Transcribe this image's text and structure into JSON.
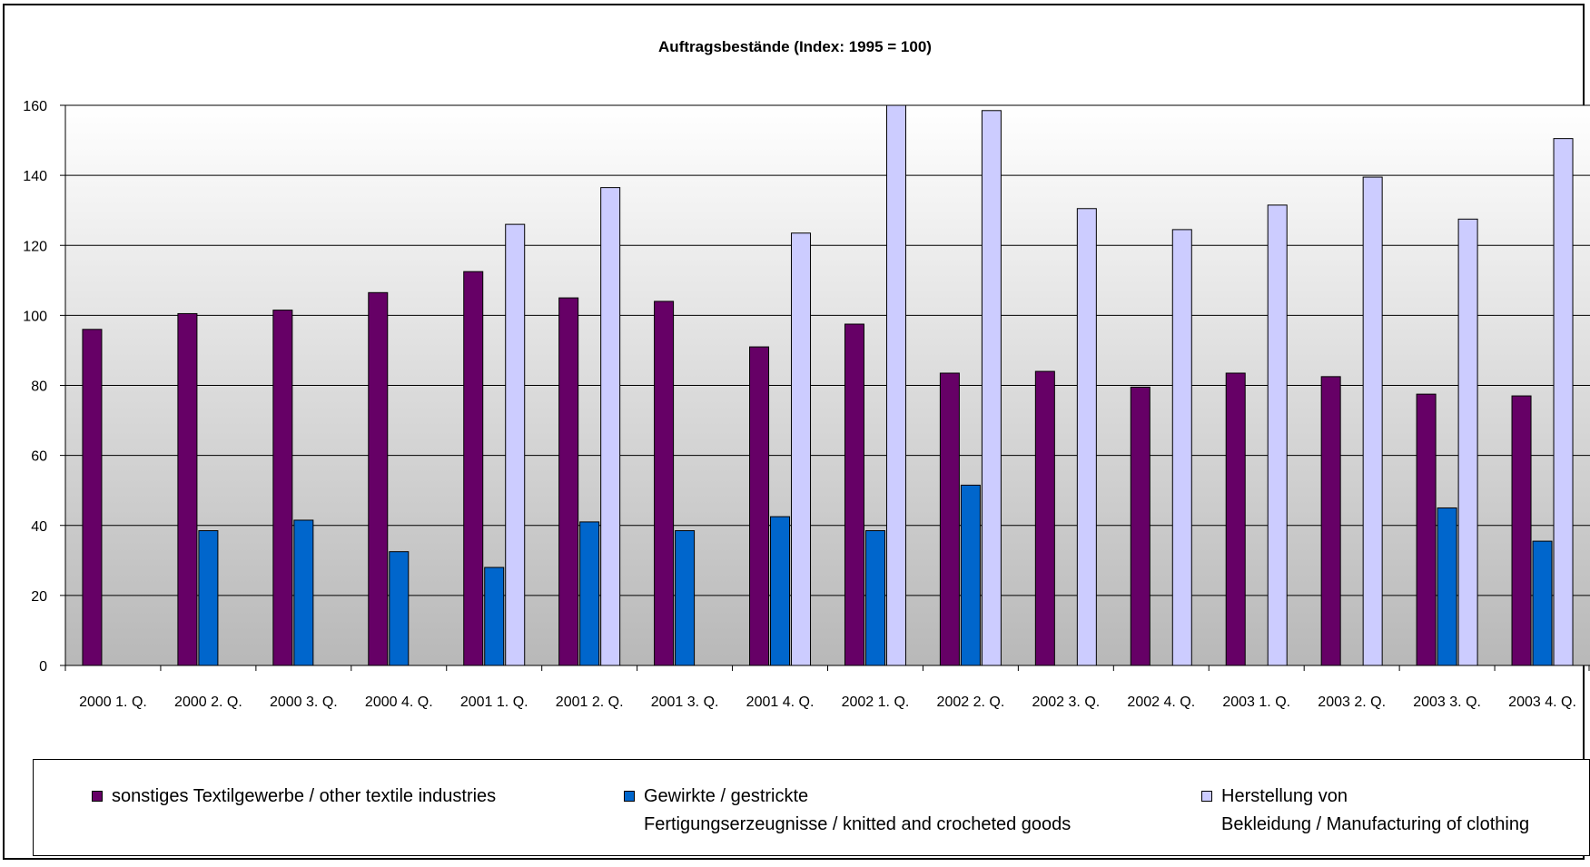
{
  "chart_data": {
    "type": "bar",
    "title": "Auftragsbestände (Index: 1995 = 100)",
    "xlabel": "",
    "ylabel": "",
    "ylim": [
      0,
      160
    ],
    "yticks": [
      "0",
      "20",
      "40",
      "60",
      "80",
      "100",
      "120",
      "140",
      "160"
    ],
    "grid": true,
    "legend_position": "bottom",
    "categories": [
      "2000 1. Q.",
      "2000 2. Q.",
      "2000 3. Q.",
      "2000 4. Q.",
      "2001 1. Q.",
      "2001 2. Q.",
      "2001 3. Q.",
      "2001 4. Q.",
      "2002 1. Q.",
      "2002 2. Q.",
      "2002 3. Q.",
      "2002 4. Q.",
      "2003 1. Q.",
      "2003 2. Q.",
      "2003 3. Q.",
      "2003 4. Q."
    ],
    "series": [
      {
        "name": "sonstiges Textilgewerbe / other textile industries",
        "name_lines": [
          "sonstiges Textilgewerbe / other textile industries"
        ],
        "color": "#660066",
        "values": [
          96,
          100.5,
          101.5,
          106.5,
          112.5,
          105,
          104,
          91,
          97.5,
          83.5,
          84,
          79.5,
          83.5,
          82.5,
          77.5,
          77
        ]
      },
      {
        "name": "Gewirkte / gestrickte Fertigungserzeugnisse / knitted and crocheted goods",
        "name_lines": [
          "Gewirkte / gestrickte",
          "Fertigungserzeugnisse / knitted and crocheted goods"
        ],
        "color": "#0066cc",
        "values": [
          null,
          38.5,
          41.5,
          32.5,
          28,
          41,
          38.5,
          42.5,
          38.5,
          51.5,
          null,
          null,
          null,
          null,
          45,
          35.5
        ]
      },
      {
        "name": "Herstellung von Bekleidung / Manufacturing of clothing",
        "name_lines": [
          "Herstellung von",
          "Bekleidung / Manufacturing of clothing"
        ],
        "color": "#ccccff",
        "values": [
          null,
          null,
          null,
          null,
          126,
          136.5,
          null,
          123.5,
          160,
          158.5,
          130.5,
          124.5,
          131.5,
          139.5,
          127.5,
          150.5
        ]
      }
    ]
  }
}
